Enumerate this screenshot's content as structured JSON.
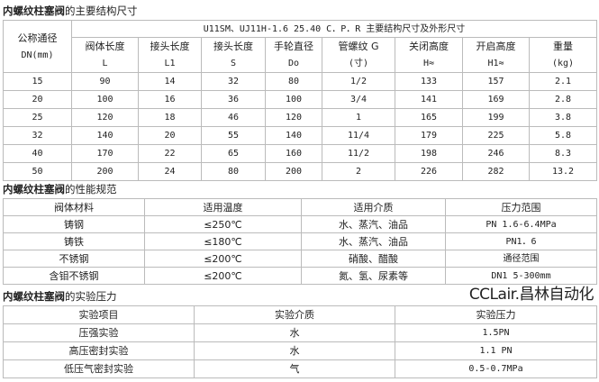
{
  "section1": {
    "title_bold": "内螺纹柱塞阀",
    "title_rest": "的主要结构尺寸",
    "dn_header": [
      "公称通径",
      "DN(mm)"
    ],
    "span_header": "U11SM、UJ11H-1.6 25.40 C．P．R 主要结构尺寸及外形尺寸",
    "columns": [
      [
        "阀体长度",
        "L"
      ],
      [
        "接头长度",
        "L1"
      ],
      [
        "接头长度",
        "S"
      ],
      [
        "手轮直径",
        "Do"
      ],
      [
        "管螺纹 G",
        "(寸)"
      ],
      [
        "关闭高度",
        "H≈"
      ],
      [
        "开启高度",
        "H1≈"
      ],
      [
        "重量",
        "(kg)"
      ]
    ],
    "rows": [
      [
        "15",
        "90",
        "14",
        "32",
        "80",
        "1/2",
        "133",
        "157",
        "2.1"
      ],
      [
        "20",
        "100",
        "16",
        "36",
        "100",
        "3/4",
        "141",
        "169",
        "2.8"
      ],
      [
        "25",
        "120",
        "18",
        "46",
        "120",
        "1",
        "165",
        "199",
        "3.8"
      ],
      [
        "32",
        "140",
        "20",
        "55",
        "140",
        "11/4",
        "179",
        "225",
        "5.8"
      ],
      [
        "40",
        "170",
        "22",
        "65",
        "160",
        "11/2",
        "198",
        "246",
        "8.3"
      ],
      [
        "50",
        "200",
        "24",
        "80",
        "200",
        "2",
        "226",
        "282",
        "13.2"
      ]
    ]
  },
  "section2": {
    "title_bold": "内螺纹柱塞阀",
    "title_rest": "的性能规范",
    "headers": [
      "阀体材料",
      "适用温度",
      "适用介质",
      "压力范围"
    ],
    "rows": [
      [
        "铸钢",
        "≤250℃",
        "水、蒸汽、油品",
        "PN 1.6-6.4MPa"
      ],
      [
        "铸铁",
        "≤180℃",
        "水、蒸汽、油品",
        "PN1．6"
      ],
      [
        "不锈钢",
        "≤200℃",
        "硝酸、醋酸",
        "通径范围"
      ],
      [
        "含钼不锈钢",
        "≤200℃",
        "氮、氢、尿素等",
        "DN1 5-300mm"
      ]
    ]
  },
  "section3": {
    "title_bold": "内螺纹柱塞阀",
    "title_rest": "的实验压力",
    "headers": [
      "实验项目",
      "实验介质",
      "实验压力"
    ],
    "rows": [
      [
        "压强实验",
        "水",
        "1.5PN"
      ],
      [
        "高压密封实验",
        "水",
        "1.1 PN"
      ],
      [
        "低压气密封实验",
        "气",
        "0.5-0.7MPa"
      ]
    ]
  },
  "watermark": "CCLair.昌林自动化"
}
